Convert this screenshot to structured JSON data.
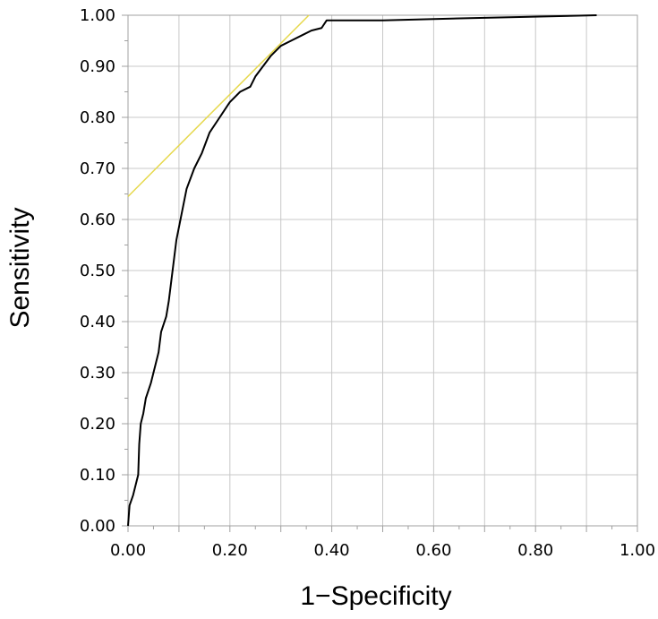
{
  "chart_data": {
    "type": "line",
    "xlabel": "1−Specificity",
    "ylabel": "Sensitivity",
    "xlim": [
      0,
      1
    ],
    "ylim": [
      0,
      1
    ],
    "grid": true,
    "x_ticks": [
      "0.00",
      "0.20",
      "0.40",
      "0.60",
      "0.80",
      "1.00"
    ],
    "y_ticks": [
      "0.00",
      "0.10",
      "0.20",
      "0.30",
      "0.40",
      "0.50",
      "0.60",
      "0.70",
      "0.80",
      "0.90",
      "1.00"
    ],
    "series": [
      {
        "color": "#000000",
        "points": [
          [
            0.0,
            0.0
          ],
          [
            0.003,
            0.04
          ],
          [
            0.01,
            0.06
          ],
          [
            0.015,
            0.08
          ],
          [
            0.02,
            0.1
          ],
          [
            0.022,
            0.16
          ],
          [
            0.025,
            0.2
          ],
          [
            0.03,
            0.22
          ],
          [
            0.035,
            0.25
          ],
          [
            0.045,
            0.28
          ],
          [
            0.05,
            0.3
          ],
          [
            0.06,
            0.34
          ],
          [
            0.065,
            0.38
          ],
          [
            0.075,
            0.41
          ],
          [
            0.08,
            0.44
          ],
          [
            0.085,
            0.48
          ],
          [
            0.09,
            0.52
          ],
          [
            0.095,
            0.56
          ],
          [
            0.105,
            0.61
          ],
          [
            0.115,
            0.66
          ],
          [
            0.13,
            0.7
          ],
          [
            0.145,
            0.73
          ],
          [
            0.16,
            0.77
          ],
          [
            0.18,
            0.8
          ],
          [
            0.2,
            0.83
          ],
          [
            0.22,
            0.85
          ],
          [
            0.24,
            0.86
          ],
          [
            0.25,
            0.88
          ],
          [
            0.265,
            0.9
          ],
          [
            0.28,
            0.92
          ],
          [
            0.3,
            0.94
          ],
          [
            0.32,
            0.95
          ],
          [
            0.34,
            0.96
          ],
          [
            0.36,
            0.97
          ],
          [
            0.38,
            0.975
          ],
          [
            0.39,
            0.99
          ],
          [
            0.5,
            0.99
          ],
          [
            0.7,
            0.995
          ],
          [
            0.92,
            1.0
          ]
        ]
      },
      {
        "color": "#e6d84a",
        "points": [
          [
            0.0,
            0.645
          ],
          [
            0.355,
            1.0
          ]
        ]
      }
    ]
  }
}
